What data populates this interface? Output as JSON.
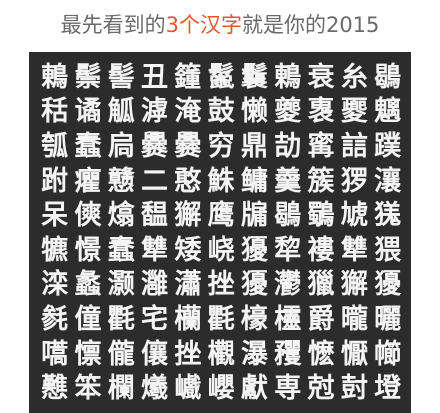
{
  "header": {
    "title_pre": "最先看到的",
    "title_highlight": "3个汉字",
    "title_post": "就是你的2015"
  },
  "colors": {
    "title_text": "#6a6a6a",
    "highlight": "#e4572e",
    "board_bg": "#2c2c2c",
    "char": "#f4f4f4"
  },
  "grid": {
    "rows": [
      [
        "鶇",
        "鬃",
        "髻",
        "丑",
        "籦",
        "鬣",
        "鬤",
        "鶇",
        "衰",
        "糸",
        "鶡"
      ],
      [
        "秳",
        "谲",
        "觚",
        "滹",
        "淹",
        "鼓",
        "懒",
        "夔",
        "褢",
        "夒",
        "魑"
      ],
      [
        "瓠",
        "蠢",
        "扃",
        "爨",
        "爨",
        "穷",
        "鼎",
        "劼",
        "寗",
        "誩",
        "蹼"
      ],
      [
        "跗",
        "癯",
        "戆",
        "二",
        "憨",
        "鮢",
        "鳙",
        "羹",
        "簇",
        "猡",
        "瀼"
      ],
      [
        "呆",
        "傸",
        "熻",
        "馧",
        "獬",
        "鹰",
        "牖",
        "鶡",
        "鸀",
        "虓",
        "獇"
      ],
      [
        "犥",
        "憬",
        "蠢",
        "犨",
        "矮",
        "峣",
        "獶",
        "犂",
        "褸",
        "犨",
        "猥"
      ],
      [
        "滦",
        "蠡",
        "灏",
        "灉",
        "瀟",
        "挫",
        "獶",
        "灪",
        "獵",
        "獬",
        "獶"
      ],
      [
        "毵",
        "僮",
        "氍",
        "宅",
        "欗",
        "氍",
        "檺",
        "欞",
        "爵",
        "曨",
        "曬"
      ],
      [
        "嚆",
        "懔",
        "儱",
        "儴",
        "挫",
        "欟",
        "瀑",
        "矡",
        "懡",
        "懨",
        "幯"
      ],
      [
        "戁",
        "笨",
        "欄",
        "爔",
        "巇",
        "巊",
        "獻",
        "専",
        "尅",
        "尌",
        "墱"
      ]
    ]
  }
}
